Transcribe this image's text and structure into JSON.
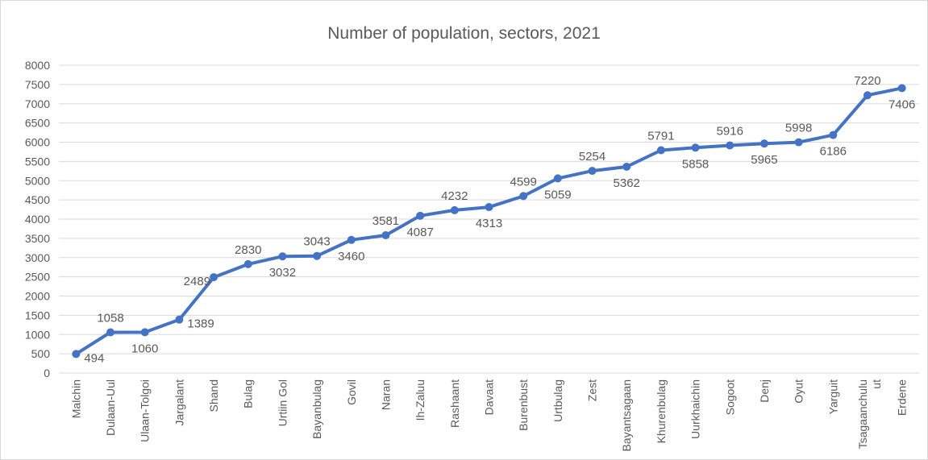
{
  "chart_data": {
    "type": "line",
    "title": "Number of population, sectors, 2021",
    "xlabel": "",
    "ylabel": "",
    "ylim": [
      0,
      8000
    ],
    "ytick_step": 500,
    "grid": true,
    "legend": "none",
    "categories": [
      "Malchin",
      "Dulaan-Uul",
      "Ulaan-Tolgoi",
      "Jargalant",
      "Shand",
      "Bulag",
      "Urtiin Gol",
      "Bayanbulag",
      "Govil",
      "Naran",
      "Ih-Zaluu",
      "Rashaant",
      "Davaat",
      "Burenbust",
      "Urtbulag",
      "Zest",
      "Bayantsagaan",
      "Khurenbulag",
      "Uurkhaichin",
      "Sogoot",
      "Denj",
      "Oyut",
      "Yarguit",
      "Tsagaanchuluut",
      "Erdene"
    ],
    "category_display_lines": [
      [
        "Malchin"
      ],
      [
        "Dulaan-Uul"
      ],
      [
        "Ulaan-Tolgoi"
      ],
      [
        "Jargalant"
      ],
      [
        "Shand"
      ],
      [
        "Bulag"
      ],
      [
        "Urtiin Gol"
      ],
      [
        "Bayanbulag"
      ],
      [
        "Govil"
      ],
      [
        "Naran"
      ],
      [
        "Ih-Zaluu"
      ],
      [
        "Rashaant"
      ],
      [
        "Davaat"
      ],
      [
        "Burenbust"
      ],
      [
        "Urtbulag"
      ],
      [
        "Zest"
      ],
      [
        "Bayantsagaan"
      ],
      [
        "Khurenbulag"
      ],
      [
        "Uurkhaichin"
      ],
      [
        "Sogoot"
      ],
      [
        "Denj"
      ],
      [
        "Oyut"
      ],
      [
        "Yarguit"
      ],
      [
        "Tsagaanchulu",
        "ut"
      ],
      [
        "Erdene"
      ]
    ],
    "values": [
      494,
      1058,
      1060,
      1389,
      2489,
      2830,
      3032,
      3043,
      3460,
      3581,
      4087,
      4232,
      4313,
      4599,
      5059,
      5254,
      5362,
      5791,
      5858,
      5916,
      5965,
      5998,
      6186,
      7220,
      7406
    ],
    "label_positions": [
      "right",
      "above",
      "below",
      "right",
      "left",
      "above",
      "below",
      "above",
      "below",
      "above",
      "below",
      "above",
      "below",
      "above",
      "below",
      "above",
      "below",
      "above",
      "below",
      "above",
      "below",
      "above",
      "below",
      "above",
      "below"
    ],
    "colors": {
      "series": "#4472c4",
      "grid": "#d9d9d9",
      "text": "#595959"
    }
  }
}
